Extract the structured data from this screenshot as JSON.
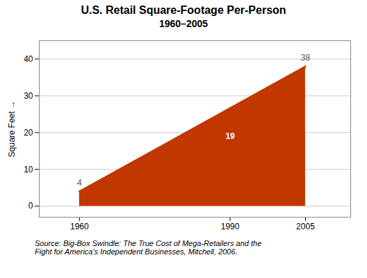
{
  "chart_data": {
    "type": "area",
    "title": "U.S. Retail Square-Footage Per-Person",
    "subtitle": "1960–2005",
    "x": [
      1960,
      2005
    ],
    "values": [
      4,
      38
    ],
    "color": "#C03800",
    "xlim": [
      1952,
      2014
    ],
    "xticks": [
      1960,
      1990,
      2005
    ],
    "ylim": [
      -3,
      45
    ],
    "yticks": [
      0,
      10,
      20,
      30,
      40
    ],
    "ylabel": "Square Feet",
    "grid": true,
    "data_labels": true,
    "annotations": [
      {
        "text": "19",
        "x": 1990,
        "y": 19
      }
    ],
    "caption": "Source: Big-Box Swindle: The True Cost of Mega-Retailers and the\nFight for America’s Independent Businesses, Mitchell, 2006."
  }
}
